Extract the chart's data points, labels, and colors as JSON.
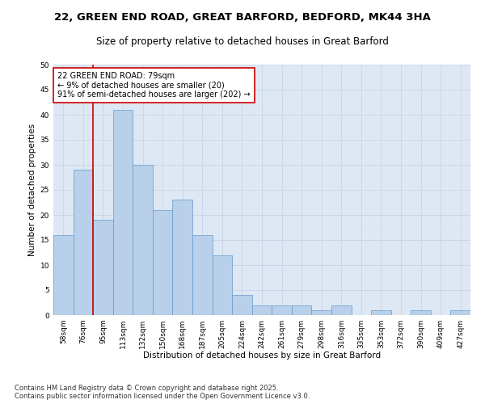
{
  "title_line1": "22, GREEN END ROAD, GREAT BARFORD, BEDFORD, MK44 3HA",
  "title_line2": "Size of property relative to detached houses in Great Barford",
  "xlabel": "Distribution of detached houses by size in Great Barford",
  "ylabel": "Number of detached properties",
  "categories": [
    "58sqm",
    "76sqm",
    "95sqm",
    "113sqm",
    "132sqm",
    "150sqm",
    "168sqm",
    "187sqm",
    "205sqm",
    "224sqm",
    "242sqm",
    "261sqm",
    "279sqm",
    "298sqm",
    "316sqm",
    "335sqm",
    "353sqm",
    "372sqm",
    "390sqm",
    "409sqm",
    "427sqm"
  ],
  "values": [
    16,
    29,
    19,
    41,
    30,
    21,
    23,
    16,
    12,
    4,
    2,
    2,
    2,
    1,
    2,
    0,
    1,
    0,
    1,
    0,
    1
  ],
  "bar_color": "#b8d0ea",
  "bar_edge_color": "#6699cc",
  "grid_color": "#c8d4e4",
  "background_color": "#dde8f4",
  "vline_color": "#cc0000",
  "vline_x_index": 1.5,
  "annotation_text": "22 GREEN END ROAD: 79sqm\n← 9% of detached houses are smaller (20)\n91% of semi-detached houses are larger (202) →",
  "annotation_box_color": "#ffffff",
  "annotation_box_edge": "#cc0000",
  "ylim": [
    0,
    50
  ],
  "yticks": [
    0,
    5,
    10,
    15,
    20,
    25,
    30,
    35,
    40,
    45,
    50
  ],
  "footer_line1": "Contains HM Land Registry data © Crown copyright and database right 2025.",
  "footer_line2": "Contains public sector information licensed under the Open Government Licence v3.0.",
  "title_fontsize": 9.5,
  "subtitle_fontsize": 8.5,
  "axis_label_fontsize": 7.5,
  "tick_fontsize": 6.5,
  "annotation_fontsize": 7,
  "footer_fontsize": 6
}
